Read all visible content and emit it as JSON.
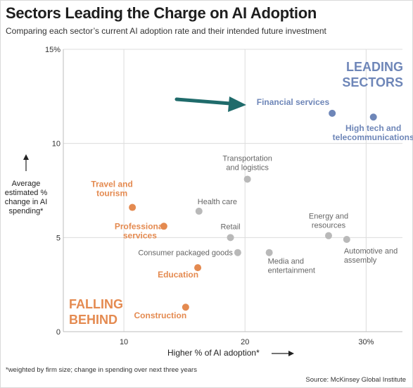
{
  "title": "Sectors Leading the Charge on AI Adoption",
  "subtitle": "Comparing each sector’s current AI adoption rate and their intended future investment",
  "ylabel": "Average estimated % change in AI spending*",
  "xlabel": "Higher % of AI adoption*",
  "footnote": "*weighted by firm size; change in spending over next three years",
  "source": "Source: McKinsey Global Institute",
  "zones": {
    "leading_line1": "LEADING",
    "leading_line2": "SECTORS",
    "falling_line1": "FALLING",
    "falling_line2": "BEHIND"
  },
  "colors": {
    "leading": "#6e86b8",
    "falling": "#e48a50",
    "neutral": "#b9b9b9",
    "arrow": "#1f6b6b"
  },
  "icons": {
    "y_arrow": "up-arrow-icon",
    "x_arrow": "right-arrow-icon",
    "pointer": "teal-arrow-icon"
  },
  "chart_data": {
    "type": "scatter",
    "title": "Sectors Leading the Charge on AI Adoption",
    "xlabel": "Higher % of AI adoption*",
    "ylabel": "Average estimated % change in AI spending*",
    "xlim": [
      5,
      33
    ],
    "ylim": [
      0,
      15
    ],
    "x_ticks": [
      10,
      20,
      30
    ],
    "x_tick_labels": [
      "10",
      "20",
      "30%"
    ],
    "y_ticks": [
      0,
      5,
      10,
      15
    ],
    "y_tick_labels": [
      "0",
      "5",
      "10",
      "15%"
    ],
    "grid": true,
    "points": [
      {
        "label": "Financial services",
        "x": 27.2,
        "y": 11.6,
        "group": "leading"
      },
      {
        "label": "High tech and telecommunications",
        "x": 30.6,
        "y": 11.4,
        "group": "leading"
      },
      {
        "label": "Transportation and logistics",
        "x": 20.2,
        "y": 8.1,
        "group": "neutral"
      },
      {
        "label": "Health care",
        "x": 16.2,
        "y": 6.4,
        "group": "neutral"
      },
      {
        "label": "Retail",
        "x": 18.8,
        "y": 5.0,
        "group": "neutral"
      },
      {
        "label": "Consumer packaged goods",
        "x": 19.4,
        "y": 4.2,
        "group": "neutral"
      },
      {
        "label": "Media and entertainment",
        "x": 22.0,
        "y": 4.2,
        "group": "neutral"
      },
      {
        "label": "Energy and resources",
        "x": 26.9,
        "y": 5.1,
        "group": "neutral"
      },
      {
        "label": "Automotive and assembly",
        "x": 28.4,
        "y": 4.9,
        "group": "neutral"
      },
      {
        "label": "Travel and tourism",
        "x": 10.7,
        "y": 6.6,
        "group": "falling"
      },
      {
        "label": "Professional services",
        "x": 13.3,
        "y": 5.6,
        "group": "falling"
      },
      {
        "label": "Education",
        "x": 16.1,
        "y": 3.4,
        "group": "falling"
      },
      {
        "label": "Construction",
        "x": 15.1,
        "y": 1.3,
        "group": "falling"
      }
    ]
  }
}
